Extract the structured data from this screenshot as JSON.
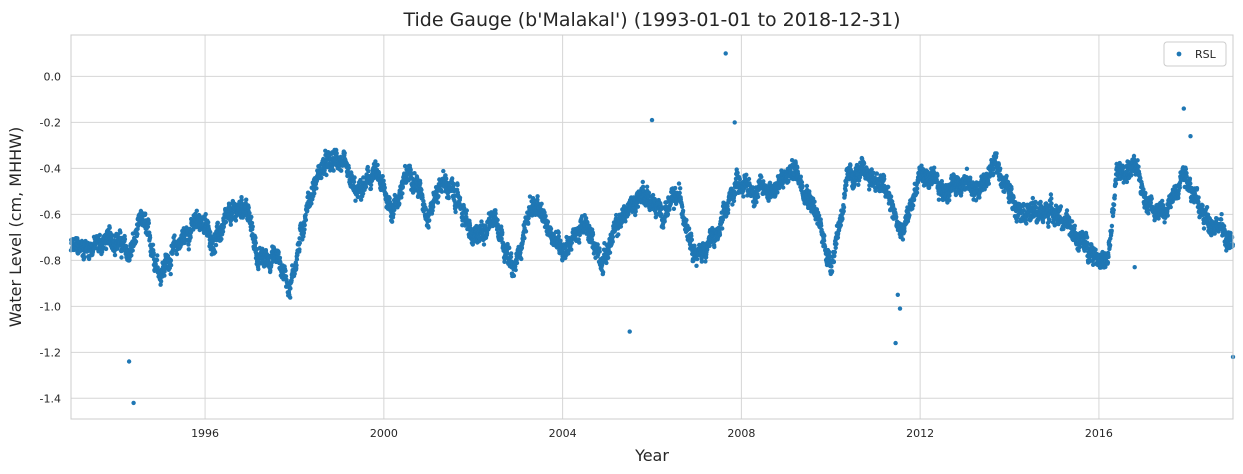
{
  "chart_data": {
    "type": "scatter",
    "title": "Tide Gauge (b'Malakal') (1993-01-01 to 2018-12-31)",
    "xlabel": "Year",
    "ylabel": "Water Level (cm, MHHW)",
    "xlim": [
      1993.0,
      2019.0
    ],
    "ylim": [
      -1.49,
      0.18
    ],
    "xticks": [
      "1996",
      "2000",
      "2004",
      "2008",
      "2012",
      "2016"
    ],
    "yticks": [
      "0.0",
      "-0.2",
      "-0.4",
      "-0.6",
      "-0.8",
      "-1.0",
      "-1.2",
      "-1.4"
    ],
    "grid": true,
    "legend": {
      "position": "top-right",
      "entries": [
        "RSL"
      ]
    },
    "series": [
      {
        "name": "RSL",
        "color": "#1f77b4",
        "marker": "circle",
        "trend": [
          [
            1993.0,
            -0.75
          ],
          [
            1993.5,
            -0.74
          ],
          [
            1994.0,
            -0.7
          ],
          [
            1994.3,
            -0.78
          ],
          [
            1994.6,
            -0.62
          ],
          [
            1995.0,
            -0.85
          ],
          [
            1995.5,
            -0.7
          ],
          [
            1995.9,
            -0.62
          ],
          [
            1996.2,
            -0.72
          ],
          [
            1996.6,
            -0.6
          ],
          [
            1996.9,
            -0.55
          ],
          [
            1997.2,
            -0.8
          ],
          [
            1997.6,
            -0.78
          ],
          [
            1997.9,
            -0.92
          ],
          [
            1998.3,
            -0.55
          ],
          [
            1998.6,
            -0.4
          ],
          [
            1999.0,
            -0.36
          ],
          [
            1999.4,
            -0.52
          ],
          [
            1999.8,
            -0.42
          ],
          [
            2000.2,
            -0.58
          ],
          [
            2000.6,
            -0.4
          ],
          [
            2001.0,
            -0.6
          ],
          [
            2001.3,
            -0.45
          ],
          [
            2001.7,
            -0.55
          ],
          [
            2002.0,
            -0.72
          ],
          [
            2002.5,
            -0.6
          ],
          [
            2002.9,
            -0.86
          ],
          [
            2003.3,
            -0.55
          ],
          [
            2003.7,
            -0.66
          ],
          [
            2004.0,
            -0.75
          ],
          [
            2004.5,
            -0.65
          ],
          [
            2004.9,
            -0.8
          ],
          [
            2005.3,
            -0.62
          ],
          [
            2005.8,
            -0.5
          ],
          [
            2006.2,
            -0.6
          ],
          [
            2006.6,
            -0.52
          ],
          [
            2007.0,
            -0.78
          ],
          [
            2007.5,
            -0.68
          ],
          [
            2007.9,
            -0.45
          ],
          [
            2008.3,
            -0.5
          ],
          [
            2008.8,
            -0.48
          ],
          [
            2009.2,
            -0.4
          ],
          [
            2009.6,
            -0.55
          ],
          [
            2010.0,
            -0.82
          ],
          [
            2010.4,
            -0.44
          ],
          [
            2010.8,
            -0.42
          ],
          [
            2011.2,
            -0.48
          ],
          [
            2011.6,
            -0.7
          ],
          [
            2012.0,
            -0.42
          ],
          [
            2012.5,
            -0.5
          ],
          [
            2012.9,
            -0.45
          ],
          [
            2013.3,
            -0.5
          ],
          [
            2013.7,
            -0.38
          ],
          [
            2014.1,
            -0.55
          ],
          [
            2014.6,
            -0.6
          ],
          [
            2015.0,
            -0.58
          ],
          [
            2015.5,
            -0.7
          ],
          [
            2016.0,
            -0.78
          ],
          [
            2016.2,
            -0.82
          ],
          [
            2016.4,
            -0.42
          ],
          [
            2016.8,
            -0.4
          ],
          [
            2017.1,
            -0.55
          ],
          [
            2017.5,
            -0.6
          ],
          [
            2017.9,
            -0.4
          ],
          [
            2018.3,
            -0.6
          ],
          [
            2018.7,
            -0.65
          ],
          [
            2019.0,
            -0.75
          ]
        ],
        "outliers": [
          [
            1994.3,
            -1.24
          ],
          [
            1994.4,
            -1.42
          ],
          [
            2005.5,
            -1.11
          ],
          [
            2006.0,
            -0.19
          ],
          [
            2007.65,
            0.1
          ],
          [
            2007.85,
            -0.2
          ],
          [
            2011.5,
            -0.95
          ],
          [
            2011.55,
            -1.01
          ],
          [
            2011.45,
            -1.16
          ],
          [
            2016.8,
            -0.83
          ],
          [
            2017.9,
            -0.14
          ],
          [
            2018.05,
            -0.26
          ],
          [
            2019.0,
            -1.22
          ]
        ]
      }
    ]
  }
}
